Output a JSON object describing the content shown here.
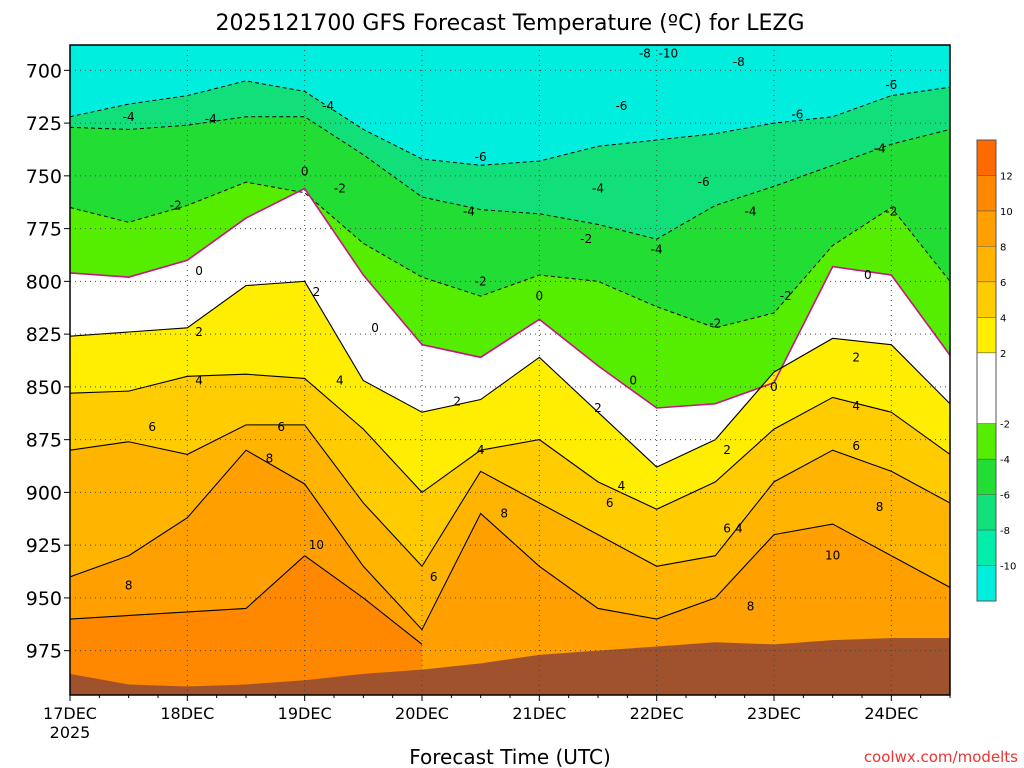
{
  "chart_data": {
    "type": "heatmap",
    "title": "2025121700 GFS Forecast Temperature (ºC) for LEZG",
    "xlabel": "Forecast Time (UTC)",
    "ylabel": "",
    "credit": "coolwx.com/modelts",
    "x_start_year": "2025",
    "x_ticks": [
      "17DEC",
      "18DEC",
      "19DEC",
      "20DEC",
      "21DEC",
      "22DEC",
      "23DEC",
      "24DEC"
    ],
    "x_range_days": [
      0,
      7.5
    ],
    "y_ticks": [
      700,
      725,
      750,
      775,
      800,
      825,
      850,
      875,
      900,
      925,
      950,
      975
    ],
    "y_range_hpa": [
      688,
      996
    ],
    "y_inverted": true,
    "grid": true,
    "colorbar": {
      "position": "right",
      "tick_labels": [
        "12",
        "10",
        "8",
        "6",
        "4",
        "2",
        "-2",
        "-4",
        "-6",
        "-8",
        "-10"
      ],
      "bins": [
        {
          "lo": 12,
          "hi": 14,
          "color": "#ff6a00"
        },
        {
          "lo": 10,
          "hi": 12,
          "color": "#ff8800"
        },
        {
          "lo": 8,
          "hi": 10,
          "color": "#ff9f00"
        },
        {
          "lo": 6,
          "hi": 8,
          "color": "#ffb400"
        },
        {
          "lo": 4,
          "hi": 6,
          "color": "#ffcc00"
        },
        {
          "lo": 2,
          "hi": 4,
          "color": "#ffee00"
        },
        {
          "lo": -2,
          "hi": 2,
          "color": "#ffffff"
        },
        {
          "lo": -4,
          "hi": -2,
          "color": "#55ee00"
        },
        {
          "lo": -6,
          "hi": -4,
          "color": "#22dd33"
        },
        {
          "lo": -8,
          "hi": -6,
          "color": "#11e07a"
        },
        {
          "lo": -10,
          "hi": -8,
          "color": "#00eeaa"
        },
        {
          "lo": -12,
          "hi": -10,
          "color": "#00eedd"
        }
      ]
    },
    "terrain_color": "#a0522d",
    "surface_pressure_hpa": [
      {
        "t": 0.0,
        "p": 986
      },
      {
        "t": 0.5,
        "p": 991
      },
      {
        "t": 1.0,
        "p": 992
      },
      {
        "t": 1.5,
        "p": 991
      },
      {
        "t": 2.0,
        "p": 989
      },
      {
        "t": 2.5,
        "p": 986
      },
      {
        "t": 3.0,
        "p": 984
      },
      {
        "t": 3.5,
        "p": 981
      },
      {
        "t": 4.0,
        "p": 977
      },
      {
        "t": 4.5,
        "p": 975
      },
      {
        "t": 5.0,
        "p": 973
      },
      {
        "t": 5.5,
        "p": 971
      },
      {
        "t": 6.0,
        "p": 972
      },
      {
        "t": 6.5,
        "p": 970
      },
      {
        "t": 7.0,
        "p": 969
      },
      {
        "t": 7.5,
        "p": 969
      }
    ],
    "isotherm_levels_hpa": [
      {
        "value": -6,
        "points": [
          [
            0,
            722
          ],
          [
            0.5,
            716
          ],
          [
            1,
            712
          ],
          [
            1.5,
            705
          ],
          [
            2,
            710
          ],
          [
            2.5,
            728
          ],
          [
            3,
            742
          ],
          [
            3.5,
            745
          ],
          [
            4,
            743
          ],
          [
            4.5,
            736
          ],
          [
            5,
            733
          ],
          [
            5.5,
            730
          ],
          [
            6,
            725
          ],
          [
            6.5,
            722
          ],
          [
            7,
            712
          ],
          [
            7.5,
            708
          ]
        ]
      },
      {
        "value": -4,
        "points": [
          [
            0,
            727
          ],
          [
            0.5,
            728
          ],
          [
            1,
            726
          ],
          [
            1.5,
            722
          ],
          [
            2,
            722
          ],
          [
            2.5,
            740
          ],
          [
            3,
            760
          ],
          [
            3.5,
            766
          ],
          [
            4,
            768
          ],
          [
            4.5,
            773
          ],
          [
            5,
            780
          ],
          [
            5.5,
            764
          ],
          [
            6,
            755
          ],
          [
            6.5,
            745
          ],
          [
            7,
            735
          ],
          [
            7.5,
            728
          ]
        ]
      },
      {
        "value": -2,
        "points": [
          [
            0,
            765
          ],
          [
            0.5,
            772
          ],
          [
            1,
            764
          ],
          [
            1.5,
            753
          ],
          [
            2,
            758
          ],
          [
            2.5,
            782
          ],
          [
            3,
            798
          ],
          [
            3.5,
            807
          ],
          [
            4,
            797
          ],
          [
            4.5,
            800
          ],
          [
            5,
            812
          ],
          [
            5.5,
            822
          ],
          [
            6,
            815
          ],
          [
            6.5,
            783
          ],
          [
            7,
            765
          ],
          [
            7.5,
            800
          ]
        ]
      },
      {
        "value": 0,
        "points": [
          [
            0,
            796
          ],
          [
            0.5,
            798
          ],
          [
            1,
            790
          ],
          [
            1.5,
            770
          ],
          [
            2,
            756
          ],
          [
            2.5,
            797
          ],
          [
            3,
            830
          ],
          [
            3.5,
            836
          ],
          [
            4,
            818
          ],
          [
            4.5,
            840
          ],
          [
            5,
            860
          ],
          [
            5.5,
            858
          ],
          [
            6,
            848
          ],
          [
            6.5,
            793
          ],
          [
            7,
            797
          ],
          [
            7.5,
            835
          ]
        ]
      },
      {
        "value": 2,
        "points": [
          [
            0,
            826
          ],
          [
            0.5,
            824
          ],
          [
            1,
            822
          ],
          [
            1.5,
            802
          ],
          [
            2,
            800
          ],
          [
            2.5,
            847
          ],
          [
            3,
            862
          ],
          [
            3.5,
            856
          ],
          [
            4,
            836
          ],
          [
            4.5,
            862
          ],
          [
            5,
            888
          ],
          [
            5.5,
            875
          ],
          [
            6,
            843
          ],
          [
            6.5,
            827
          ],
          [
            7,
            830
          ],
          [
            7.5,
            858
          ]
        ]
      },
      {
        "value": 4,
        "points": [
          [
            0,
            853
          ],
          [
            0.5,
            852
          ],
          [
            1,
            845
          ],
          [
            1.5,
            844
          ],
          [
            2,
            846
          ],
          [
            2.5,
            870
          ],
          [
            3,
            900
          ],
          [
            3.5,
            880
          ],
          [
            4,
            875
          ],
          [
            4.5,
            895
          ],
          [
            5,
            908
          ],
          [
            5.5,
            895
          ],
          [
            6,
            870
          ],
          [
            6.5,
            855
          ],
          [
            7,
            862
          ],
          [
            7.5,
            882
          ]
        ]
      },
      {
        "value": 6,
        "points": [
          [
            0,
            880
          ],
          [
            0.5,
            876
          ],
          [
            1,
            882
          ],
          [
            1.5,
            868
          ],
          [
            2,
            868
          ],
          [
            2.5,
            905
          ],
          [
            3,
            935
          ],
          [
            3.5,
            890
          ],
          [
            4,
            905
          ],
          [
            4.5,
            920
          ],
          [
            5,
            935
          ],
          [
            5.5,
            930
          ],
          [
            6,
            895
          ],
          [
            6.5,
            880
          ],
          [
            7,
            890
          ],
          [
            7.5,
            905
          ]
        ]
      },
      {
        "value": 8,
        "points": [
          [
            0,
            940
          ],
          [
            0.5,
            930
          ],
          [
            1,
            912
          ],
          [
            1.5,
            880
          ],
          [
            2,
            896
          ],
          [
            2.5,
            935
          ],
          [
            3,
            965
          ],
          [
            3.5,
            910
          ],
          [
            4,
            935
          ],
          [
            4.5,
            955
          ],
          [
            5,
            960
          ],
          [
            5.5,
            950
          ],
          [
            6,
            920
          ],
          [
            6.5,
            915
          ],
          [
            7,
            930
          ],
          [
            7.5,
            945
          ]
        ]
      },
      {
        "value": 10,
        "points": [
          [
            0.0,
            960
          ],
          [
            1.5,
            955
          ],
          [
            2.0,
            930
          ],
          [
            2.5,
            950
          ],
          [
            3.0,
            972
          ]
        ]
      }
    ],
    "contour_labels": [
      {
        "text": "-4",
        "t": 0.5,
        "p": 722
      },
      {
        "text": "-4",
        "t": 1.2,
        "p": 723
      },
      {
        "text": "-4",
        "t": 2.2,
        "p": 717
      },
      {
        "text": "-6",
        "t": 3.5,
        "p": 741
      },
      {
        "text": "-8",
        "t": 4.9,
        "p": 692
      },
      {
        "text": "-10",
        "t": 5.1,
        "p": 692
      },
      {
        "text": "-8",
        "t": 5.7,
        "p": 696
      },
      {
        "text": "-6",
        "t": 7.0,
        "p": 707
      },
      {
        "text": "-6",
        "t": 4.7,
        "p": 717
      },
      {
        "text": "-6",
        "t": 6.2,
        "p": 721
      },
      {
        "text": "-4",
        "t": 6.9,
        "p": 737
      },
      {
        "text": "-2",
        "t": 0.9,
        "p": 764
      },
      {
        "text": "-2",
        "t": 2.3,
        "p": 756
      },
      {
        "text": "-4",
        "t": 3.4,
        "p": 767
      },
      {
        "text": "-4",
        "t": 4.5,
        "p": 756
      },
      {
        "text": "-6",
        "t": 5.4,
        "p": 753
      },
      {
        "text": "-4",
        "t": 5.8,
        "p": 767
      },
      {
        "text": "-2",
        "t": 7.0,
        "p": 767
      },
      {
        "text": "-2",
        "t": 4.4,
        "p": 780
      },
      {
        "text": "-4",
        "t": 5.0,
        "p": 785
      },
      {
        "text": "-2",
        "t": 3.5,
        "p": 800
      },
      {
        "text": "-2",
        "t": 5.5,
        "p": 820
      },
      {
        "text": "-2",
        "t": 6.1,
        "p": 807
      },
      {
        "text": "0",
        "t": 1.1,
        "p": 795
      },
      {
        "text": "0",
        "t": 2.0,
        "p": 748
      },
      {
        "text": "0",
        "t": 2.6,
        "p": 822
      },
      {
        "text": "0",
        "t": 4.0,
        "p": 807
      },
      {
        "text": "0",
        "t": 4.8,
        "p": 847
      },
      {
        "text": "0",
        "t": 6.0,
        "p": 850
      },
      {
        "text": "0",
        "t": 6.8,
        "p": 797
      },
      {
        "text": "2",
        "t": 1.1,
        "p": 824
      },
      {
        "text": "2",
        "t": 2.1,
        "p": 805
      },
      {
        "text": "2",
        "t": 3.3,
        "p": 857
      },
      {
        "text": "2",
        "t": 4.5,
        "p": 860
      },
      {
        "text": "2",
        "t": 5.6,
        "p": 880
      },
      {
        "text": "2",
        "t": 6.7,
        "p": 836
      },
      {
        "text": "4",
        "t": 1.1,
        "p": 847
      },
      {
        "text": "4",
        "t": 2.3,
        "p": 847
      },
      {
        "text": "4",
        "t": 3.5,
        "p": 880
      },
      {
        "text": "4",
        "t": 4.7,
        "p": 897
      },
      {
        "text": "4",
        "t": 5.7,
        "p": 917
      },
      {
        "text": "4",
        "t": 6.7,
        "p": 859
      },
      {
        "text": "6",
        "t": 0.7,
        "p": 869
      },
      {
        "text": "6",
        "t": 1.8,
        "p": 869
      },
      {
        "text": "6",
        "t": 3.1,
        "p": 940
      },
      {
        "text": "6",
        "t": 4.6,
        "p": 905
      },
      {
        "text": "6",
        "t": 5.6,
        "p": 917
      },
      {
        "text": "6",
        "t": 6.7,
        "p": 878
      },
      {
        "text": "8",
        "t": 0.5,
        "p": 944
      },
      {
        "text": "8",
        "t": 1.7,
        "p": 884
      },
      {
        "text": "8",
        "t": 3.7,
        "p": 910
      },
      {
        "text": "8",
        "t": 5.8,
        "p": 954
      },
      {
        "text": "8",
        "t": 6.9,
        "p": 907
      },
      {
        "text": "10",
        "t": 2.1,
        "p": 925
      },
      {
        "text": "10",
        "t": 6.5,
        "p": 930
      }
    ]
  }
}
